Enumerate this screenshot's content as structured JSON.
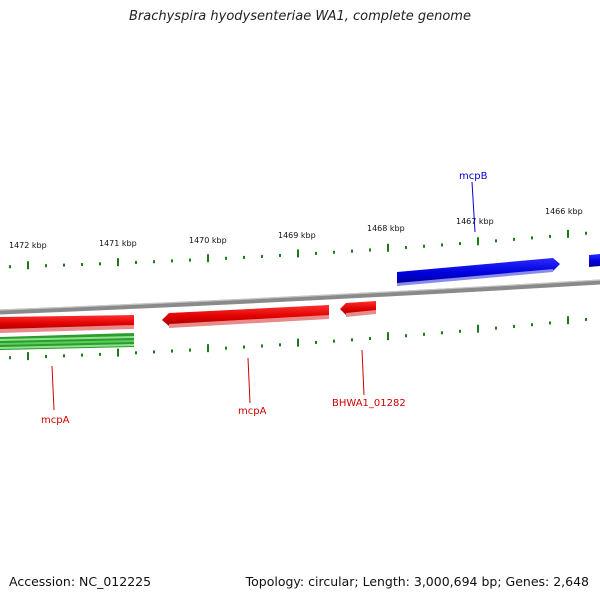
{
  "map": {
    "title": "Brachyspira hyodysenteriae WA1, complete genome",
    "accession": "Accession: NC_012225",
    "topology": "Topology: circular; Length: 3,000,694 bp; Genes: 2,648"
  },
  "scale": {
    "unit": "kbp",
    "ticks": [
      "1472 kbp",
      "1471 kbp",
      "1470 kbp",
      "1469 kbp",
      "1468 kbp",
      "1467 kbp",
      "1466 kbp"
    ]
  },
  "genes": [
    {
      "name": "mcpA",
      "strand": "reverse",
      "color": "#e60000"
    },
    {
      "name": "mcpA",
      "strand": "reverse",
      "color": "#e60000"
    },
    {
      "name": "BHWA1_01282",
      "strand": "reverse",
      "color": "#e60000"
    },
    {
      "name": "mcpB",
      "strand": "forward",
      "color": "#0000e6"
    }
  ],
  "colors": {
    "forward_gene": "#0000e6",
    "reverse_gene": "#e60000",
    "green_track": "#2a9d2a",
    "tick_marks": "#1a7a1a",
    "backbone": "#808080"
  }
}
